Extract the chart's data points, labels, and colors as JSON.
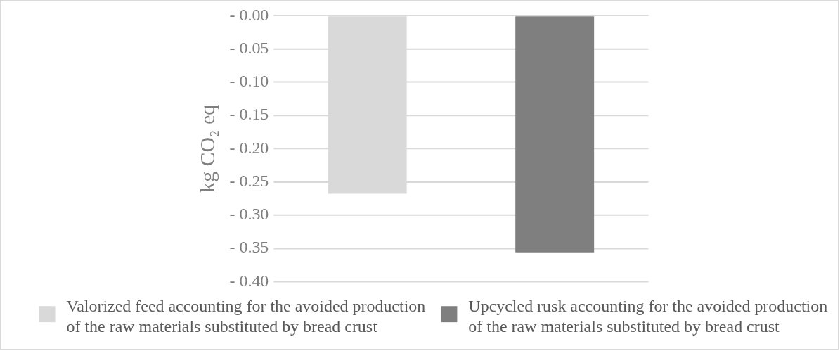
{
  "chart_data": {
    "type": "bar",
    "ylabel": "kg CO₂ eq",
    "categories": [
      null,
      null
    ],
    "series": [
      {
        "name": "Valorized feed accounting for the avoided production of the raw materials substituted by bread crust",
        "color": "#d9d9d9",
        "values": [
          -0.268,
          null
        ]
      },
      {
        "name": "Upcycled rusk accounting for the avoided production of the raw materials substituted by bread crust",
        "color": "#7f7f7f",
        "values": [
          null,
          -0.356
        ]
      }
    ],
    "ylim": [
      -0.4,
      0
    ],
    "yticks": [
      {
        "value": 0,
        "label": "- 0.00"
      },
      {
        "value": -0.05,
        "label": "- 0.05"
      },
      {
        "value": -0.1,
        "label": "- 0.10"
      },
      {
        "value": -0.15,
        "label": "- 0.15"
      },
      {
        "value": -0.2,
        "label": "- 0.20"
      },
      {
        "value": -0.25,
        "label": "- 0.25"
      },
      {
        "value": -0.3,
        "label": "- 0.30"
      },
      {
        "value": -0.35,
        "label": "- 0.35"
      },
      {
        "value": -0.4,
        "label": "- 0.40"
      }
    ],
    "grid": "y",
    "legend": "bottom"
  }
}
